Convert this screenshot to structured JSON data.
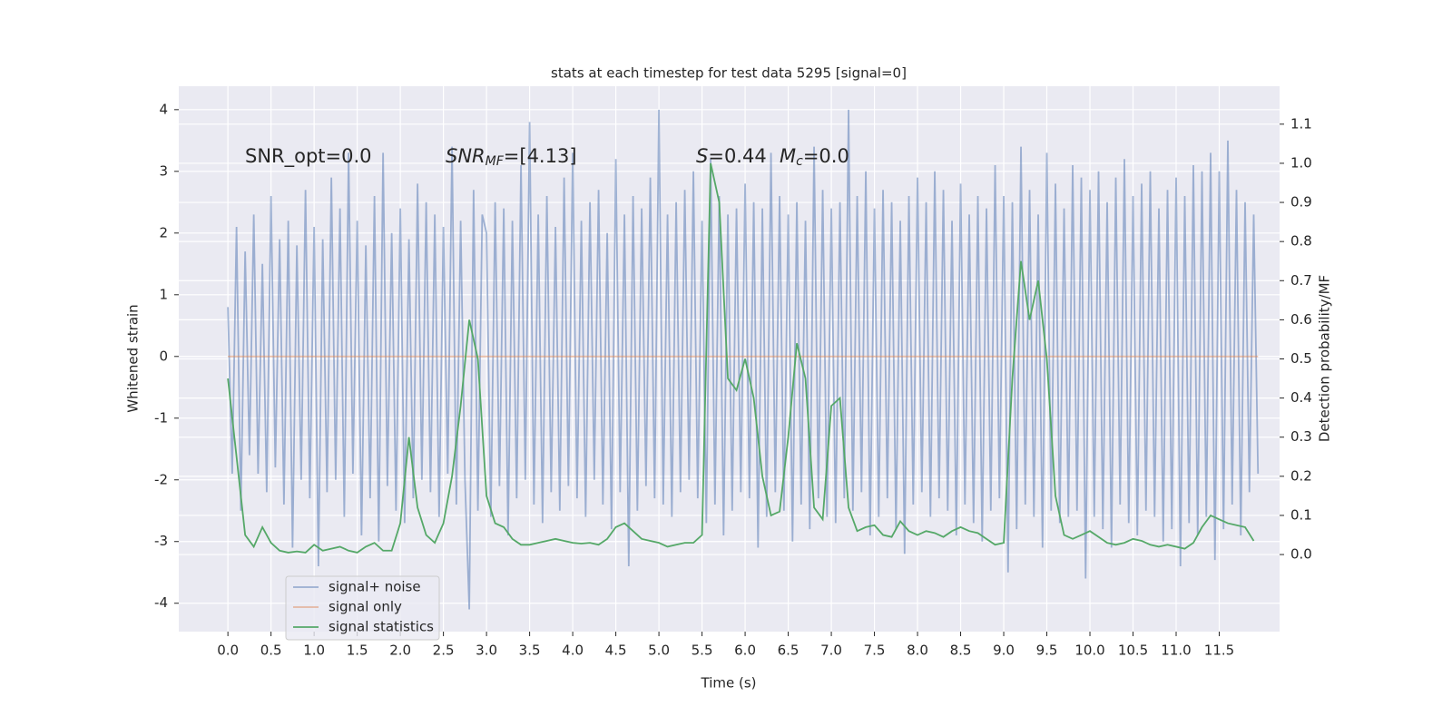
{
  "chart_data": {
    "type": "line",
    "title": "stats at each timestep for test data 5295 [signal=0]",
    "xlabel": "Time (s)",
    "ylabel": "Whitened strain",
    "y2label": "Detection probability/MF",
    "xlim": [
      -0.57,
      12.2
    ],
    "ylim": [
      -4.46,
      4.38
    ],
    "y2lim": [
      -0.197,
      1.197
    ],
    "xticks": [
      {
        "value": 0,
        "label": "0.0"
      },
      0.5,
      {
        "value": 1,
        "label": "1.0"
      },
      1.5,
      {
        "value": 2,
        "label": "2.0"
      },
      2.5,
      {
        "value": 3,
        "label": "3.0"
      },
      3.5,
      {
        "value": 4,
        "label": "4.0"
      },
      4.5,
      {
        "value": 5,
        "label": "5.0"
      },
      5.5,
      {
        "value": 6,
        "label": "6.0"
      },
      6.5,
      {
        "value": 7,
        "label": "7.0"
      },
      7.5,
      {
        "value": 8,
        "label": "8.0"
      },
      8.5,
      {
        "value": 9,
        "label": "9.0"
      },
      9.5,
      {
        "value": 10,
        "label": "10.0"
      },
      10.5,
      {
        "value": 11,
        "label": "11.0"
      },
      11.5
    ],
    "yticks": [
      -4,
      -3,
      -2,
      -1,
      0,
      1,
      2,
      3,
      4
    ],
    "y2ticks": [
      {
        "value": 0,
        "label": "0.0"
      },
      0.1,
      0.2,
      0.3,
      0.4,
      0.5,
      0.6,
      0.7,
      0.8,
      0.9,
      {
        "value": 1,
        "label": "1.0"
      },
      1.1
    ],
    "grid": true,
    "legend": "lower left",
    "annotations": [
      {
        "text": "SNR_opt=0.0"
      },
      {
        "symbol": "SNR",
        "sub": "MF",
        "text": "=[4.13]"
      },
      {
        "symbol": "S",
        "text": "=0.44"
      },
      {
        "symbol": "M",
        "sub": "c",
        "text": "=0.0"
      }
    ],
    "series": [
      {
        "name": "signal+ noise",
        "color": "#4c72b0",
        "opacity": 0.5,
        "x": [
          0,
          0.05,
          0.1,
          0.15,
          0.2,
          0.25,
          0.3,
          0.35,
          0.4,
          0.45,
          0.5,
          0.55,
          0.6,
          0.65,
          0.7,
          0.75,
          0.8,
          0.85,
          0.9,
          0.95,
          1,
          1.05,
          1.1,
          1.15,
          1.2,
          1.25,
          1.3,
          1.35,
          1.4,
          1.45,
          1.5,
          1.55,
          1.6,
          1.65,
          1.7,
          1.75,
          1.8,
          1.85,
          1.9,
          1.95,
          2,
          2.05,
          2.1,
          2.15,
          2.2,
          2.25,
          2.3,
          2.35,
          2.4,
          2.45,
          2.5,
          2.55,
          2.6,
          2.65,
          2.7,
          2.75,
          2.8,
          2.85,
          2.9,
          2.95,
          3,
          3.05,
          3.1,
          3.15,
          3.2,
          3.25,
          3.3,
          3.35,
          3.4,
          3.45,
          3.5,
          3.55,
          3.6,
          3.65,
          3.7,
          3.75,
          3.8,
          3.85,
          3.9,
          3.95,
          4,
          4.05,
          4.1,
          4.15,
          4.2,
          4.25,
          4.3,
          4.35,
          4.4,
          4.45,
          4.5,
          4.55,
          4.6,
          4.65,
          4.7,
          4.75,
          4.8,
          4.85,
          4.9,
          4.95,
          5,
          5.05,
          5.1,
          5.15,
          5.2,
          5.25,
          5.3,
          5.35,
          5.4,
          5.45,
          5.5,
          5.55,
          5.6,
          5.65,
          5.7,
          5.75,
          5.8,
          5.85,
          5.9,
          5.95,
          6,
          6.05,
          6.1,
          6.15,
          6.2,
          6.25,
          6.3,
          6.35,
          6.4,
          6.45,
          6.5,
          6.55,
          6.6,
          6.65,
          6.7,
          6.75,
          6.8,
          6.85,
          6.9,
          6.95,
          7,
          7.05,
          7.1,
          7.15,
          7.2,
          7.25,
          7.3,
          7.35,
          7.4,
          7.45,
          7.5,
          7.55,
          7.6,
          7.65,
          7.7,
          7.75,
          7.8,
          7.85,
          7.9,
          7.95,
          8,
          8.05,
          8.1,
          8.15,
          8.2,
          8.25,
          8.3,
          8.35,
          8.4,
          8.45,
          8.5,
          8.55,
          8.6,
          8.65,
          8.7,
          8.75,
          8.8,
          8.85,
          8.9,
          8.95,
          9,
          9.05,
          9.1,
          9.15,
          9.2,
          9.25,
          9.3,
          9.35,
          9.4,
          9.45,
          9.5,
          9.55,
          9.6,
          9.65,
          9.7,
          9.75,
          9.8,
          9.85,
          9.9,
          9.95,
          10,
          10.05,
          10.1,
          10.15,
          10.2,
          10.25,
          10.3,
          10.35,
          10.4,
          10.45,
          10.5,
          10.55,
          10.6,
          10.65,
          10.7,
          10.75,
          10.8,
          10.85,
          10.9,
          10.95,
          11,
          11.05,
          11.1,
          11.15,
          11.2,
          11.25,
          11.3,
          11.35,
          11.4,
          11.45,
          11.5,
          11.55,
          11.6,
          11.65,
          11.7,
          11.75,
          11.8,
          11.85,
          11.9,
          11.95
        ],
        "values": [
          0.8,
          -1.9,
          2.1,
          -2.5,
          1.7,
          -1.6,
          2.3,
          -1.9,
          1.5,
          -2.2,
          2.6,
          -1.8,
          1.9,
          -2.4,
          2.2,
          -3.1,
          1.8,
          -2.0,
          2.7,
          -2.3,
          2.1,
          -3.4,
          1.9,
          -2.2,
          2.9,
          -2.0,
          2.4,
          -2.6,
          3.3,
          -1.9,
          2.2,
          -2.9,
          1.8,
          -2.3,
          2.6,
          -3.0,
          3.3,
          -2.1,
          2.0,
          -2.5,
          2.4,
          -2.7,
          1.9,
          -2.3,
          2.8,
          -2.0,
          2.5,
          -2.2,
          2.3,
          -2.6,
          2.1,
          -1.9,
          3.4,
          -2.4,
          2.2,
          -2.0,
          -4.1,
          2.7,
          -2.5,
          2.3,
          2.0,
          -2.6,
          2.5,
          -2.1,
          2.4,
          -2.9,
          2.2,
          -2.3,
          3.1,
          -2.0,
          3.8,
          -2.4,
          2.3,
          -2.7,
          2.6,
          -2.2,
          2.1,
          -2.5,
          2.9,
          -2.1,
          3.3,
          -2.3,
          2.2,
          -2.6,
          2.5,
          -2.0,
          2.7,
          -2.4,
          2.0,
          -2.8,
          3.2,
          -2.2,
          2.3,
          -3.4,
          2.6,
          -2.5,
          2.4,
          -2.1,
          2.9,
          -2.3,
          4.0,
          -2.4,
          2.3,
          -2.6,
          2.5,
          -2.2,
          2.7,
          -2.0,
          3.0,
          -2.3,
          2.2,
          -2.7,
          3.2,
          -2.4,
          2.6,
          -2.9,
          2.3,
          -2.5,
          2.4,
          -2.2,
          2.8,
          -2.3,
          2.5,
          -3.1,
          2.4,
          -2.6,
          3.3,
          -2.2,
          2.6,
          -2.5,
          2.3,
          -3.0,
          2.5,
          -2.4,
          2.2,
          -2.8,
          3.4,
          -2.3,
          2.7,
          -2.6,
          2.4,
          -2.7,
          2.5,
          -2.3,
          4.0,
          -2.5,
          2.6,
          -2.2,
          3.0,
          -2.9,
          2.4,
          -2.6,
          2.7,
          -2.3,
          2.5,
          -2.8,
          2.2,
          -3.2,
          2.6,
          -2.4,
          2.9,
          -2.2,
          2.5,
          -2.6,
          3.0,
          -2.3,
          2.7,
          -2.5,
          2.2,
          -2.9,
          2.8,
          -2.4,
          2.3,
          -2.7,
          2.6,
          -3.0,
          2.4,
          -2.5,
          3.1,
          -2.3,
          2.6,
          -3.5,
          2.5,
          -2.8,
          3.4,
          -2.4,
          2.7,
          -2.6,
          2.3,
          -3.1,
          3.3,
          -2.5,
          2.8,
          -2.7,
          2.4,
          -2.6,
          3.1,
          -2.5,
          2.9,
          -3.6,
          2.7,
          -2.6,
          3.0,
          -2.8,
          2.5,
          -3.1,
          2.9,
          -2.4,
          3.2,
          -2.7,
          2.6,
          -2.9,
          2.8,
          -2.5,
          3.0,
          -2.6,
          2.4,
          -3.0,
          2.7,
          -2.8,
          2.9,
          -3.4,
          2.6,
          -2.7,
          3.1,
          -2.9,
          3.0,
          -2.6,
          3.3,
          -3.3,
          3.0,
          -2.8,
          3.5,
          -2.4,
          2.7,
          -2.9,
          2.5,
          -2.2,
          2.3,
          -1.9
        ]
      },
      {
        "name": "signal only",
        "color": "#dd8452",
        "opacity": 0.5,
        "x": [
          0,
          11.95
        ],
        "values": [
          0,
          0
        ]
      },
      {
        "name": "signal statistics",
        "color": "#55a868",
        "opacity": 1,
        "axis": "y2",
        "x": [
          0,
          0.1,
          0.2,
          0.3,
          0.4,
          0.5,
          0.6,
          0.7,
          0.8,
          0.9,
          1,
          1.1,
          1.2,
          1.3,
          1.4,
          1.5,
          1.6,
          1.7,
          1.8,
          1.9,
          2,
          2.1,
          2.2,
          2.3,
          2.4,
          2.5,
          2.6,
          2.7,
          2.8,
          2.9,
          3,
          3.1,
          3.2,
          3.3,
          3.4,
          3.5,
          3.6,
          3.7,
          3.8,
          3.9,
          4,
          4.1,
          4.2,
          4.3,
          4.4,
          4.5,
          4.6,
          4.7,
          4.8,
          4.9,
          5,
          5.1,
          5.2,
          5.3,
          5.4,
          5.5,
          5.6,
          5.7,
          5.8,
          5.9,
          6,
          6.1,
          6.2,
          6.3,
          6.4,
          6.5,
          6.6,
          6.7,
          6.8,
          6.9,
          7,
          7.1,
          7.2,
          7.3,
          7.4,
          7.5,
          7.6,
          7.7,
          7.8,
          7.9,
          8,
          8.1,
          8.2,
          8.3,
          8.4,
          8.5,
          8.6,
          8.7,
          8.8,
          8.9,
          9,
          9.1,
          9.2,
          9.3,
          9.4,
          9.5,
          9.6,
          9.7,
          9.8,
          9.9,
          10,
          10.1,
          10.2,
          10.3,
          10.4,
          10.5,
          10.6,
          10.7,
          10.8,
          10.9,
          11,
          11.1,
          11.2,
          11.3,
          11.4,
          11.5,
          11.6,
          11.7,
          11.8,
          11.9
        ],
        "values": [
          0.45,
          0.25,
          0.05,
          0.02,
          0.07,
          0.03,
          0.01,
          0.005,
          0.008,
          0.005,
          0.025,
          0.01,
          0.015,
          0.02,
          0.01,
          0.005,
          0.02,
          0.03,
          0.01,
          0.01,
          0.08,
          0.3,
          0.12,
          0.05,
          0.03,
          0.08,
          0.2,
          0.38,
          0.6,
          0.5,
          0.15,
          0.08,
          0.07,
          0.04,
          0.025,
          0.025,
          0.03,
          0.035,
          0.04,
          0.035,
          0.03,
          0.028,
          0.03,
          0.025,
          0.04,
          0.07,
          0.08,
          0.06,
          0.04,
          0.035,
          0.03,
          0.02,
          0.025,
          0.03,
          0.03,
          0.05,
          1.0,
          0.9,
          0.45,
          0.42,
          0.5,
          0.4,
          0.2,
          0.1,
          0.11,
          0.3,
          0.54,
          0.45,
          0.12,
          0.09,
          0.38,
          0.4,
          0.12,
          0.06,
          0.07,
          0.075,
          0.05,
          0.045,
          0.085,
          0.06,
          0.05,
          0.06,
          0.055,
          0.045,
          0.06,
          0.07,
          0.06,
          0.055,
          0.04,
          0.025,
          0.03,
          0.45,
          0.75,
          0.6,
          0.7,
          0.5,
          0.15,
          0.05,
          0.04,
          0.05,
          0.06,
          0.045,
          0.03,
          0.025,
          0.03,
          0.04,
          0.035,
          0.025,
          0.02,
          0.025,
          0.02,
          0.015,
          0.03,
          0.07,
          0.1,
          0.09,
          0.08,
          0.075,
          0.07,
          0.035
        ]
      }
    ]
  }
}
